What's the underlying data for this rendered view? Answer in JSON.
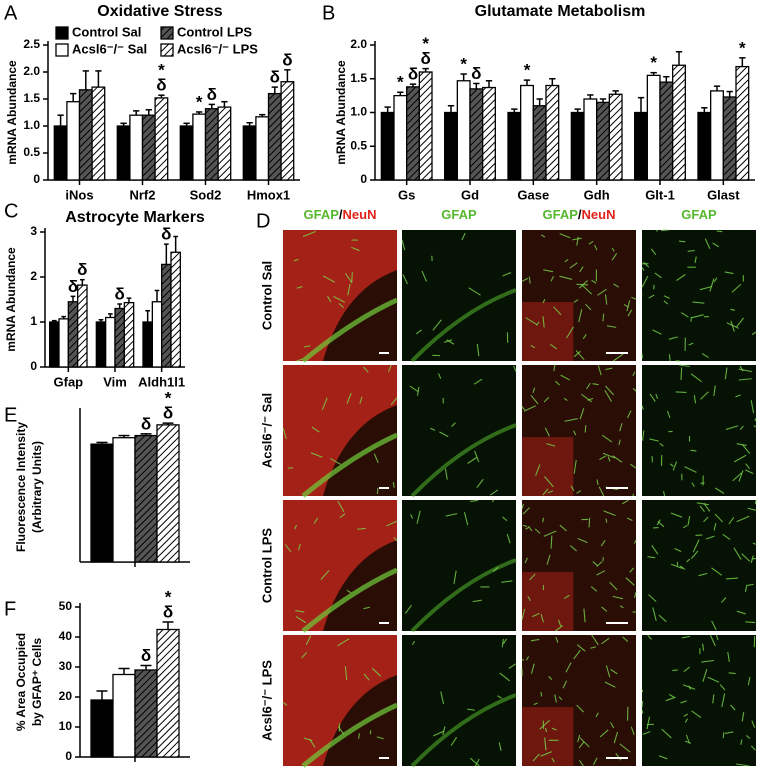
{
  "panel_labels": [
    "A",
    "B",
    "C",
    "D",
    "E",
    "F"
  ],
  "chart_data": [
    {
      "type": "bar",
      "title": "Oxidative Stress",
      "ylabel": "mRNA Abundance",
      "legend": "top-left",
      "categories": [
        "iNos",
        "Nrf2",
        "Sod2",
        "Hmox1"
      ],
      "ylim": [
        0,
        2.5
      ],
      "yticks": [
        0,
        0.5,
        {
          "value": 1,
          "label": "1.0"
        },
        1.5,
        {
          "value": 2,
          "label": "2.0"
        },
        2.5
      ],
      "series": [
        {
          "name": "Control Sal",
          "color": "#000000",
          "hatch": false,
          "values": [
            1.0,
            1.0,
            1.0,
            1.0
          ],
          "errors": [
            0.2,
            0.05,
            0.05,
            0.06
          ],
          "annotations": [
            null,
            null,
            null,
            null
          ]
        },
        {
          "name": "Acsl6⁻/⁻ Sal",
          "color": "#ffffff",
          "hatch": false,
          "values": [
            1.45,
            1.2,
            1.22,
            1.17
          ],
          "errors": [
            0.15,
            0.08,
            0.04,
            0.04
          ],
          "annotations": [
            null,
            null,
            [
              "*"
            ],
            null
          ]
        },
        {
          "name": "Control LPS",
          "color": "#555555",
          "hatch": true,
          "values": [
            1.67,
            1.2,
            1.32,
            1.6
          ],
          "errors": [
            0.35,
            0.1,
            0.08,
            0.12
          ],
          "annotations": [
            null,
            null,
            [
              "δ"
            ],
            [
              "δ"
            ]
          ]
        },
        {
          "name": "Acsl6⁻/⁻ LPS",
          "color": "#ffffff",
          "hatch": true,
          "values": [
            1.72,
            1.52,
            1.35,
            1.82
          ],
          "errors": [
            0.3,
            0.05,
            0.1,
            0.22
          ],
          "annotations": [
            null,
            [
              "δ",
              "*"
            ],
            null,
            [
              "δ"
            ]
          ]
        }
      ]
    },
    {
      "type": "bar",
      "title": "Glutamate Metabolism",
      "ylabel": "mRNA Abundance",
      "categories": [
        "Gs",
        "Gd",
        "Gase",
        "Gdh",
        "Glt-1",
        "Glast"
      ],
      "ylim": [
        0,
        2
      ],
      "yticks": [
        0,
        0.5,
        {
          "value": 1,
          "label": "1.0"
        },
        1.5,
        {
          "value": 2,
          "label": "2.0"
        }
      ],
      "series": [
        {
          "color": "#000000",
          "hatch": false,
          "values": [
            1.0,
            1.0,
            1.0,
            1.0,
            1.0,
            1.0
          ],
          "errors": [
            0.08,
            0.1,
            0.05,
            0.05,
            0.22,
            0.07
          ],
          "annotations": [
            null,
            null,
            null,
            null,
            null,
            null
          ]
        },
        {
          "color": "#ffffff",
          "hatch": false,
          "values": [
            1.25,
            1.47,
            1.4,
            1.2,
            1.55,
            1.32
          ],
          "errors": [
            0.05,
            0.1,
            0.08,
            0.06,
            0.04,
            0.07
          ],
          "annotations": [
            [
              "*"
            ],
            [
              "*"
            ],
            [
              "*"
            ],
            null,
            [
              "*"
            ],
            null
          ]
        },
        {
          "color": "#555555",
          "hatch": true,
          "values": [
            1.38,
            1.35,
            1.1,
            1.15,
            1.45,
            1.23
          ],
          "errors": [
            0.04,
            0.08,
            0.1,
            0.05,
            0.08,
            0.08
          ],
          "annotations": [
            [
              "δ"
            ],
            [
              "δ"
            ],
            null,
            null,
            null,
            null
          ]
        },
        {
          "color": "#ffffff",
          "hatch": true,
          "values": [
            1.6,
            1.37,
            1.4,
            1.27,
            1.7,
            1.68
          ],
          "errors": [
            0.05,
            0.1,
            0.1,
            0.05,
            0.2,
            0.13
          ],
          "annotations": [
            [
              "δ",
              "*"
            ],
            null,
            null,
            null,
            null,
            [
              "*"
            ]
          ]
        }
      ]
    },
    {
      "type": "bar",
      "title": "Astrocyte Markers",
      "ylabel": "mRNA Abundance",
      "categories": [
        "Gfap",
        "Vim",
        "Aldh1l1"
      ],
      "ylim": [
        0,
        3
      ],
      "yticks": [
        0,
        1,
        2,
        3
      ],
      "series": [
        {
          "color": "#000000",
          "hatch": false,
          "values": [
            1.0,
            1.0,
            1.0
          ],
          "errors": [
            0.03,
            0.05,
            0.25
          ],
          "annotations": [
            null,
            null,
            null
          ]
        },
        {
          "color": "#ffffff",
          "hatch": false,
          "values": [
            1.07,
            1.1,
            1.45
          ],
          "errors": [
            0.05,
            0.08,
            0.25
          ],
          "annotations": [
            null,
            null,
            null
          ]
        },
        {
          "color": "#555555",
          "hatch": true,
          "values": [
            1.45,
            1.3,
            2.28
          ],
          "errors": [
            0.12,
            0.1,
            0.45
          ],
          "annotations": [
            [
              "δ"
            ],
            [
              "δ"
            ],
            [
              "δ"
            ]
          ]
        },
        {
          "color": "#ffffff",
          "hatch": true,
          "values": [
            1.82,
            1.43,
            2.55
          ],
          "errors": [
            0.12,
            0.1,
            0.35
          ],
          "annotations": [
            [
              "δ"
            ],
            null,
            null
          ]
        }
      ]
    },
    {
      "type": "bar",
      "ylabel": [
        "Fluorescence Intensity",
        "(Arbitrary Units)"
      ],
      "categories": [
        null
      ],
      "ylim": [
        0,
        3.5
      ],
      "series": [
        {
          "color": "#000000",
          "hatch": false,
          "values": [
            2.75
          ],
          "errors": [
            0.04
          ],
          "annotations": [
            null
          ]
        },
        {
          "color": "#ffffff",
          "hatch": false,
          "values": [
            2.9
          ],
          "errors": [
            0.05
          ],
          "annotations": [
            null
          ]
        },
        {
          "color": "#555555",
          "hatch": true,
          "values": [
            2.95
          ],
          "errors": [
            0.04
          ],
          "annotations": [
            [
              "δ"
            ]
          ]
        },
        {
          "color": "#ffffff",
          "hatch": true,
          "values": [
            3.2
          ],
          "errors": [
            0.04
          ],
          "annotations": [
            [
              "δ",
              "*"
            ]
          ]
        }
      ]
    },
    {
      "type": "bar",
      "ylabel": [
        "% Area Occupied",
        "by GFAP⁺ Cells"
      ],
      "categories": [
        null
      ],
      "ylim": [
        0,
        50
      ],
      "yticks": [
        0,
        10,
        20,
        30,
        40,
        50
      ],
      "series": [
        {
          "color": "#000000",
          "hatch": false,
          "values": [
            19
          ],
          "errors": [
            3
          ],
          "annotations": [
            null
          ]
        },
        {
          "color": "#ffffff",
          "hatch": false,
          "values": [
            27.5
          ],
          "errors": [
            2
          ],
          "annotations": [
            null
          ]
        },
        {
          "color": "#555555",
          "hatch": true,
          "values": [
            29
          ],
          "errors": [
            1.5
          ],
          "annotations": [
            [
              "δ"
            ]
          ]
        },
        {
          "color": "#ffffff",
          "hatch": true,
          "values": [
            42.5
          ],
          "errors": [
            2.5
          ],
          "annotations": [
            [
              "δ",
              "*"
            ]
          ]
        }
      ]
    }
  ],
  "image_panel": {
    "columns": [
      [
        "GFAP",
        "/",
        "NeuN"
      ],
      [
        "GFAP"
      ],
      [
        "GFAP",
        "/",
        "NeuN"
      ],
      [
        "GFAP"
      ]
    ],
    "rows": [
      "Control Sal",
      "Acsl6⁻/⁻ Sal",
      "Control LPS",
      "Acsl6⁻/⁻ LPS"
    ]
  }
}
